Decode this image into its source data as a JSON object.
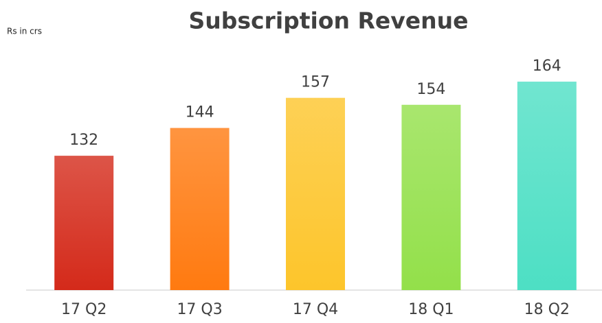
{
  "chart_data": {
    "type": "bar",
    "title": "Subscription Revenue",
    "unit_label": "Rs in crs",
    "categories": [
      "17 Q2",
      "17 Q3",
      "17 Q4",
      "18 Q1",
      "18 Q2"
    ],
    "values": [
      132,
      144,
      157,
      154,
      164
    ],
    "colors": [
      "#d42a1a",
      "#ff7a10",
      "#fdc52b",
      "#93e04a",
      "#4ddfc4"
    ],
    "ylim": [
      74,
      180
    ]
  }
}
